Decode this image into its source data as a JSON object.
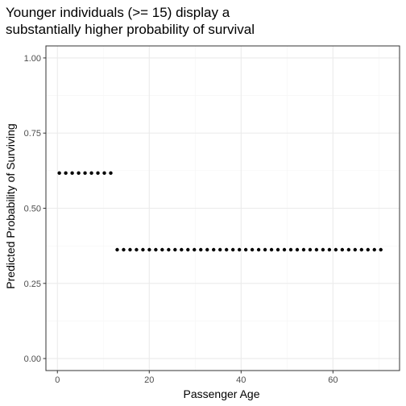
{
  "chart_data": {
    "type": "scatter",
    "title": [
      "Younger individuals (>= 15) display a",
      "substantially higher probability of survival"
    ],
    "xlabel": "Passenger Age",
    "ylabel": "Predicted Probability of Surviving",
    "xlim": [
      -2.5,
      74.5
    ],
    "ylim": [
      -0.04,
      1.04
    ],
    "x_ticks": [
      0,
      20,
      40,
      60
    ],
    "x_tick_labels": [
      "0",
      "20",
      "40",
      "60"
    ],
    "y_ticks": [
      0,
      0.25,
      0.5,
      0.75,
      1
    ],
    "y_tick_labels": [
      "0.00",
      "0.25",
      "0.50",
      "0.75",
      "1.00"
    ],
    "grid": true,
    "series": [
      {
        "x": [
          0.42,
          1.82,
          3.22,
          4.62,
          6.02,
          7.42,
          8.82,
          10.22,
          11.62,
          13.02,
          14.42,
          15.82,
          17.22,
          18.62,
          20.02,
          21.42,
          22.82,
          24.22,
          25.62,
          27.02,
          28.42,
          29.82,
          31.22,
          32.62,
          34.02,
          35.42,
          36.82,
          38.22,
          39.62,
          41.02,
          42.42,
          43.82,
          45.22,
          46.62,
          48.02,
          49.42,
          50.82,
          52.22,
          53.62,
          55.02,
          56.42,
          57.82,
          59.22,
          60.62,
          62.02,
          63.42,
          64.82,
          66.22,
          67.62,
          69.02,
          70.42
        ],
        "y": [
          0.617,
          0.617,
          0.617,
          0.617,
          0.617,
          0.617,
          0.617,
          0.617,
          0.617,
          0.362,
          0.362,
          0.362,
          0.362,
          0.362,
          0.362,
          0.362,
          0.362,
          0.362,
          0.362,
          0.362,
          0.362,
          0.362,
          0.362,
          0.362,
          0.362,
          0.362,
          0.362,
          0.362,
          0.362,
          0.362,
          0.362,
          0.362,
          0.362,
          0.362,
          0.362,
          0.362,
          0.362,
          0.362,
          0.362,
          0.362,
          0.362,
          0.362,
          0.362,
          0.362,
          0.362,
          0.362,
          0.362,
          0.362,
          0.362,
          0.362,
          0.362
        ]
      }
    ]
  },
  "colors": {
    "panel_border": "#333333",
    "grid_major": "#ebebeb",
    "grid_minor": "#f5f5f5",
    "point": "#000000",
    "tick": "#333333"
  }
}
